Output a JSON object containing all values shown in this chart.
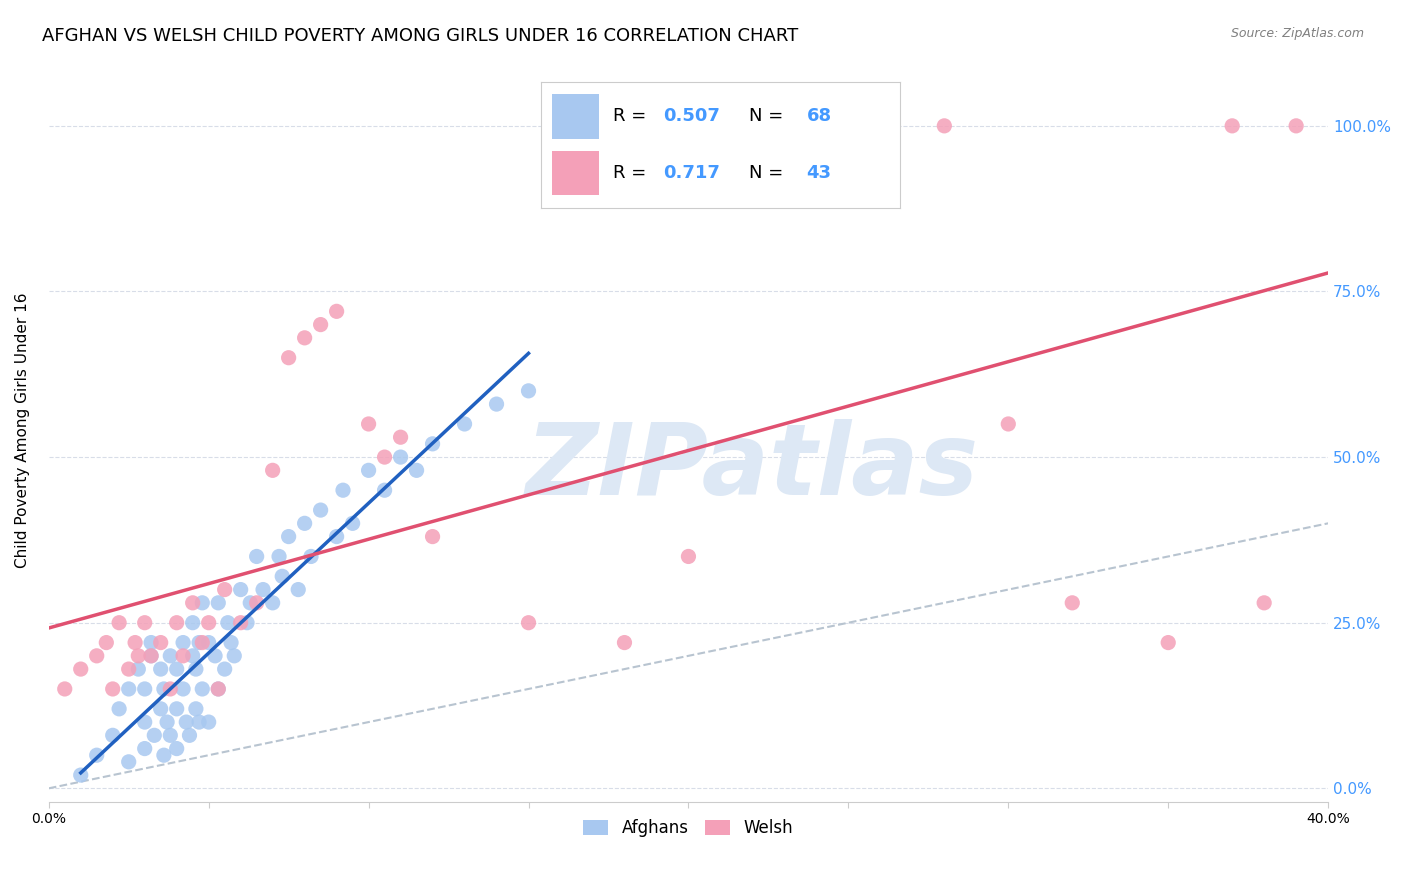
{
  "title": "AFGHAN VS WELSH CHILD POVERTY AMONG GIRLS UNDER 16 CORRELATION CHART",
  "source": "Source: ZipAtlas.com",
  "ylabel": "Child Poverty Among Girls Under 16",
  "xlim": [
    0.0,
    0.4
  ],
  "ylim": [
    -0.02,
    1.1
  ],
  "ytick_positions": [
    0.0,
    0.25,
    0.5,
    0.75,
    1.0
  ],
  "ytick_labels_right": [
    "0.0%",
    "25.0%",
    "50.0%",
    "75.0%",
    "100.0%"
  ],
  "xtick_positions": [
    0.0,
    0.05,
    0.1,
    0.15,
    0.2,
    0.25,
    0.3,
    0.35,
    0.4
  ],
  "xtick_labels": [
    "0.0%",
    "",
    "",
    "",
    "",
    "",
    "",
    "",
    "40.0%"
  ],
  "afghan_R": "0.507",
  "afghan_N": "68",
  "welsh_R": "0.717",
  "welsh_N": "43",
  "afghan_color": "#a8c8f0",
  "welsh_color": "#f4a0b8",
  "afghan_line_color": "#2060c0",
  "welsh_line_color": "#e05070",
  "ref_line_color": "#b8c4d0",
  "watermark_color": "#dde8f5",
  "watermark_text": "ZIPatlas",
  "background_color": "#ffffff",
  "grid_color": "#d8dde8",
  "blue_text_color": "#4499ff",
  "afghan_x": [
    0.01,
    0.015,
    0.02,
    0.022,
    0.025,
    0.025,
    0.028,
    0.03,
    0.03,
    0.03,
    0.032,
    0.032,
    0.033,
    0.035,
    0.035,
    0.036,
    0.036,
    0.037,
    0.038,
    0.038,
    0.04,
    0.04,
    0.04,
    0.042,
    0.042,
    0.043,
    0.044,
    0.045,
    0.045,
    0.046,
    0.046,
    0.047,
    0.047,
    0.048,
    0.048,
    0.05,
    0.05,
    0.052,
    0.053,
    0.053,
    0.055,
    0.056,
    0.057,
    0.058,
    0.06,
    0.062,
    0.063,
    0.065,
    0.067,
    0.07,
    0.072,
    0.073,
    0.075,
    0.078,
    0.08,
    0.082,
    0.085,
    0.09,
    0.092,
    0.095,
    0.1,
    0.105,
    0.11,
    0.115,
    0.12,
    0.13,
    0.14,
    0.15
  ],
  "afghan_y": [
    0.02,
    0.05,
    0.08,
    0.12,
    0.04,
    0.15,
    0.18,
    0.06,
    0.1,
    0.15,
    0.2,
    0.22,
    0.08,
    0.12,
    0.18,
    0.05,
    0.15,
    0.1,
    0.08,
    0.2,
    0.06,
    0.12,
    0.18,
    0.15,
    0.22,
    0.1,
    0.08,
    0.2,
    0.25,
    0.12,
    0.18,
    0.1,
    0.22,
    0.15,
    0.28,
    0.1,
    0.22,
    0.2,
    0.15,
    0.28,
    0.18,
    0.25,
    0.22,
    0.2,
    0.3,
    0.25,
    0.28,
    0.35,
    0.3,
    0.28,
    0.35,
    0.32,
    0.38,
    0.3,
    0.4,
    0.35,
    0.42,
    0.38,
    0.45,
    0.4,
    0.48,
    0.45,
    0.5,
    0.48,
    0.52,
    0.55,
    0.58,
    0.6
  ],
  "welsh_x": [
    0.005,
    0.01,
    0.015,
    0.018,
    0.02,
    0.022,
    0.025,
    0.027,
    0.028,
    0.03,
    0.032,
    0.035,
    0.038,
    0.04,
    0.042,
    0.045,
    0.048,
    0.05,
    0.053,
    0.055,
    0.06,
    0.065,
    0.07,
    0.075,
    0.08,
    0.085,
    0.09,
    0.1,
    0.105,
    0.11,
    0.12,
    0.15,
    0.18,
    0.2,
    0.22,
    0.25,
    0.28,
    0.3,
    0.32,
    0.35,
    0.37,
    0.38,
    0.39
  ],
  "welsh_y": [
    0.15,
    0.18,
    0.2,
    0.22,
    0.15,
    0.25,
    0.18,
    0.22,
    0.2,
    0.25,
    0.2,
    0.22,
    0.15,
    0.25,
    0.2,
    0.28,
    0.22,
    0.25,
    0.15,
    0.3,
    0.25,
    0.28,
    0.48,
    0.65,
    0.68,
    0.7,
    0.72,
    0.55,
    0.5,
    0.53,
    0.38,
    0.25,
    0.22,
    0.35,
    1.0,
    1.0,
    1.0,
    0.55,
    0.28,
    0.22,
    1.0,
    0.28,
    1.0
  ],
  "title_fontsize": 13,
  "axis_label_fontsize": 11,
  "tick_fontsize": 10,
  "legend_fontsize": 13
}
